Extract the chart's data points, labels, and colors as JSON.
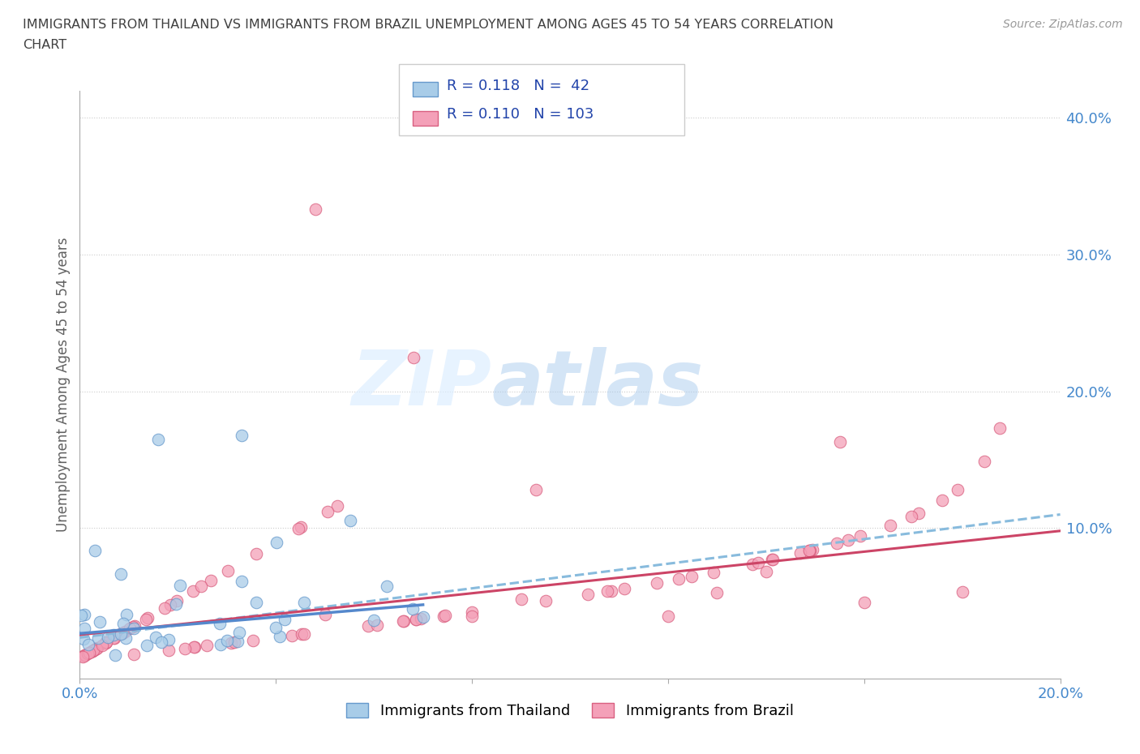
{
  "title_line1": "IMMIGRANTS FROM THAILAND VS IMMIGRANTS FROM BRAZIL UNEMPLOYMENT AMONG AGES 45 TO 54 YEARS CORRELATION",
  "title_line2": "CHART",
  "source_text": "Source: ZipAtlas.com",
  "ylabel": "Unemployment Among Ages 45 to 54 years",
  "xlim": [
    0.0,
    0.2
  ],
  "ylim": [
    -0.01,
    0.42
  ],
  "thailand_color": "#a8cce8",
  "thailand_edge": "#6699cc",
  "brazil_color": "#f4a0b8",
  "brazil_edge": "#d96080",
  "trend_thailand_color": "#5588cc",
  "trend_brazil_color": "#cc4466",
  "trend_brazil_dash_color": "#88bbdd",
  "thailand_R": 0.118,
  "thailand_N": 42,
  "brazil_R": 0.11,
  "brazil_N": 103,
  "watermark_zip": "ZIP",
  "watermark_atlas": "atlas",
  "background_color": "#ffffff",
  "grid_color": "#cccccc",
  "title_color": "#404040",
  "axis_label_color": "#606060",
  "tick_color_right": "#4488cc",
  "tick_color_bottom": "#4488cc",
  "legend_label1": "Immigrants from Thailand",
  "legend_label2": "Immigrants from Brazil"
}
